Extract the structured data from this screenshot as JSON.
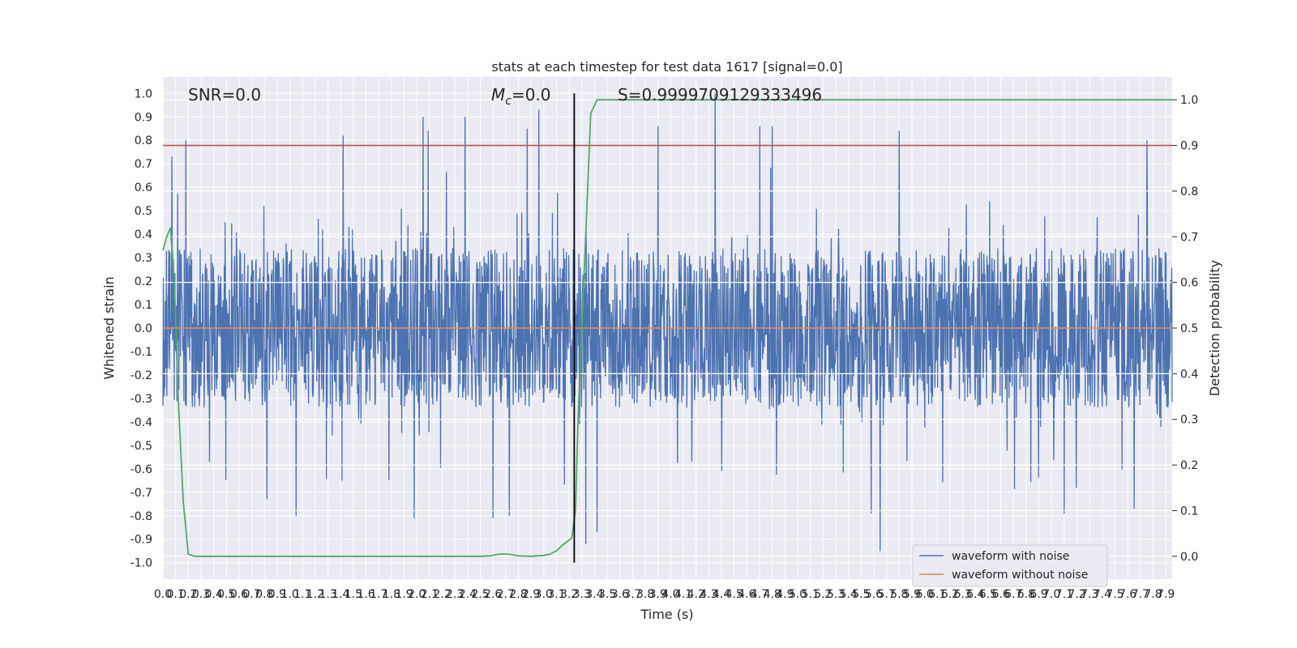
{
  "chart_data": {
    "type": "line",
    "title": "stats at each timestep for test data 1617 [signal=0.0]",
    "xlabel": "Time (s)",
    "ylabel": "Whitened strain",
    "ylabel_right": "Detection probability",
    "xlim": [
      0.0,
      7.95
    ],
    "ylim": [
      -1.07,
      1.07
    ],
    "ylim_right": [
      -0.05,
      1.05
    ],
    "x_ticks": [
      "0.0",
      "0.1",
      "0.2",
      "0.3",
      "0.4",
      "0.5",
      "0.6",
      "0.7",
      "0.8",
      "0.9",
      "1.0",
      "1.1",
      "1.2",
      "1.3",
      "1.4",
      "1.5",
      "1.6",
      "1.7",
      "1.8",
      "1.9",
      "2.0",
      "2.1",
      "2.2",
      "2.3",
      "2.4",
      "2.5",
      "2.6",
      "2.7",
      "2.8",
      "2.9",
      "3.0",
      "3.1",
      "3.2",
      "3.3",
      "3.4",
      "3.5",
      "3.6",
      "3.7",
      "3.8",
      "3.9",
      "4.0",
      "4.1",
      "4.2",
      "4.3",
      "4.4",
      "4.5",
      "4.6",
      "4.7",
      "4.8",
      "4.9",
      "5.0",
      "5.1",
      "5.2",
      "5.3",
      "5.4",
      "5.5",
      "5.6",
      "5.7",
      "5.8",
      "5.9",
      "6.0",
      "6.1",
      "6.2",
      "6.3",
      "6.4",
      "6.5",
      "6.6",
      "6.7",
      "6.8",
      "6.9",
      "7.0",
      "7.1",
      "7.2",
      "7.3",
      "7.4",
      "7.5",
      "7.6",
      "7.7",
      "7.8",
      "7.9"
    ],
    "y_ticks": [
      "1.0",
      "0.9",
      "0.8",
      "0.7",
      "0.6",
      "0.5",
      "0.4",
      "0.3",
      "0.2",
      "0.1",
      "0.0",
      "-0.1",
      "-0.2",
      "-0.3",
      "-0.4",
      "-0.5",
      "-0.6",
      "-0.7",
      "-0.8",
      "-0.9",
      "-1.0"
    ],
    "y_ticks_right": [
      "1.0",
      "0.9",
      "0.8",
      "0.7",
      "0.6",
      "0.5",
      "0.4",
      "0.3",
      "0.2",
      "0.1",
      "0.0"
    ],
    "annotations": {
      "snr": "SNR=0.0",
      "mc_symbol": "M",
      "mc_sub": "c",
      "mc_value": "=0.0",
      "s": "S=0.9999709129333496"
    },
    "threshold_line": {
      "axis": "right",
      "y": 0.9,
      "color": "#c44e52"
    },
    "vertical_marker": {
      "x": 3.24,
      "color": "#000000"
    },
    "grid": true,
    "legend_position": "lower right",
    "series": [
      {
        "name": "waveform with noise",
        "color": "#4c72b0",
        "axis": "left",
        "note": "dense noise, envelope approx ±0.45, peaks to ±1.0",
        "peaks": [
          [
            0.07,
            0.73
          ],
          [
            0.18,
            0.8
          ],
          [
            1.42,
            0.82
          ],
          [
            2.05,
            0.9
          ],
          [
            2.09,
            0.84
          ],
          [
            2.38,
            0.9
          ],
          [
            2.87,
            0.85
          ],
          [
            2.96,
            0.93
          ],
          [
            3.9,
            0.86
          ],
          [
            4.35,
            1.0
          ],
          [
            4.7,
            0.86
          ],
          [
            4.8,
            0.86
          ],
          [
            5.8,
            0.84
          ],
          [
            7.75,
            0.8
          ],
          [
            0.82,
            -0.73
          ],
          [
            1.05,
            -0.8
          ],
          [
            1.98,
            -0.81
          ],
          [
            2.6,
            -0.81
          ],
          [
            2.73,
            -0.8
          ],
          [
            3.33,
            -0.92
          ],
          [
            3.42,
            -0.87
          ],
          [
            5.58,
            -0.79
          ],
          [
            5.65,
            -0.95
          ],
          [
            7.1,
            -0.79
          ],
          [
            7.65,
            -0.77
          ]
        ]
      },
      {
        "name": "waveform without noise",
        "color": "#dd8452",
        "axis": "left",
        "x": [
          0.0,
          7.95
        ],
        "y": [
          0.0,
          0.0
        ]
      },
      {
        "name": "",
        "color": "#55a868",
        "axis": "right",
        "x": [
          0.0,
          0.03,
          0.06,
          0.09,
          0.12,
          0.16,
          0.2,
          0.25,
          0.3,
          0.5,
          1.0,
          2.0,
          2.5,
          2.58,
          2.65,
          2.72,
          2.8,
          2.9,
          3.0,
          3.05,
          3.1,
          3.15,
          3.22,
          3.25,
          3.27,
          3.33,
          3.37,
          3.42,
          3.5,
          7.95
        ],
        "y": [
          0.67,
          0.7,
          0.72,
          0.6,
          0.35,
          0.12,
          0.005,
          0.0,
          0.0,
          0.0,
          0.0,
          0.0,
          0.0,
          0.001,
          0.005,
          0.005,
          0.001,
          0.0,
          0.002,
          0.005,
          0.012,
          0.025,
          0.04,
          0.1,
          0.3,
          0.7,
          0.97,
          1.0,
          1.0,
          1.0
        ]
      }
    ]
  }
}
